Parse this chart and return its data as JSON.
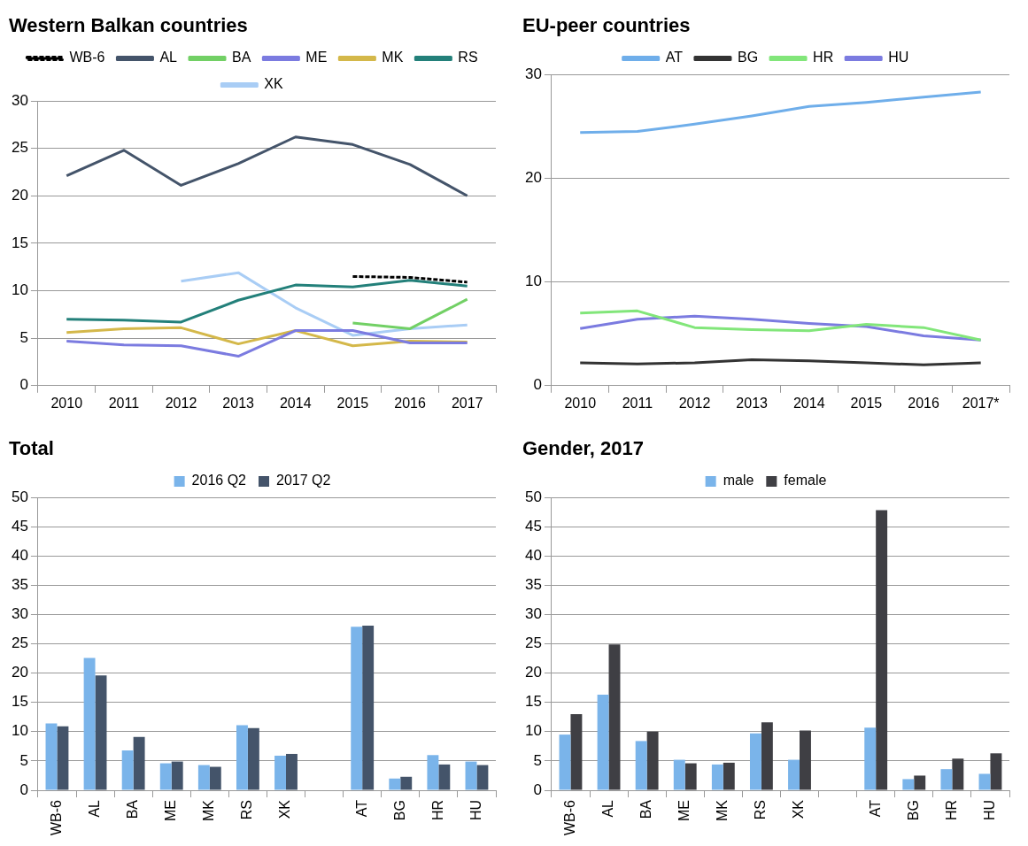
{
  "chart_data": [
    {
      "type": "line",
      "title": "Western Balkan countries",
      "categories": [
        "2010",
        "2011",
        "2012",
        "2013",
        "2014",
        "2015",
        "2016",
        "2017"
      ],
      "series": [
        {
          "name": "WB-6",
          "color": "#000000",
          "line_style": "dashed",
          "values": [
            null,
            null,
            null,
            null,
            null,
            11.5,
            11.4,
            10.9
          ]
        },
        {
          "name": "AL",
          "color": "#44546a",
          "values": [
            22.1,
            24.8,
            21.1,
            23.4,
            26.2,
            25.4,
            23.3,
            20.0
          ]
        },
        {
          "name": "BA",
          "color": "#72d065",
          "values": [
            null,
            null,
            null,
            null,
            null,
            6.6,
            6.0,
            9.1
          ]
        },
        {
          "name": "ME",
          "color": "#7b7be0",
          "values": [
            4.7,
            4.3,
            4.2,
            3.1,
            5.8,
            5.8,
            4.5,
            4.5
          ]
        },
        {
          "name": "MK",
          "color": "#d4b84a",
          "values": [
            5.6,
            6.0,
            6.1,
            4.4,
            5.8,
            4.2,
            4.7,
            4.6
          ]
        },
        {
          "name": "RS",
          "color": "#23807a",
          "values": [
            7.0,
            6.9,
            6.7,
            9.0,
            10.6,
            10.4,
            11.1,
            10.5
          ]
        },
        {
          "name": "XK",
          "color": "#a9cdf5",
          "values": [
            null,
            null,
            11.0,
            11.9,
            8.2,
            5.3,
            6.0,
            6.4
          ]
        }
      ],
      "ylim": [
        0,
        30
      ],
      "yticks": [
        0,
        5,
        10,
        15,
        20,
        25,
        30
      ],
      "grid": "y",
      "legend": "top",
      "marker": "none",
      "line_style": "solid"
    },
    {
      "type": "line",
      "title": "EU-peer countries",
      "categories": [
        "2010",
        "2011",
        "2012",
        "2013",
        "2014",
        "2015",
        "2016",
        "2017*"
      ],
      "series": [
        {
          "name": "AT",
          "color": "#6faeea",
          "values": [
            24.4,
            24.5,
            25.2,
            26.0,
            26.9,
            27.3,
            27.8,
            28.3
          ]
        },
        {
          "name": "BG",
          "color": "#333333",
          "values": [
            2.2,
            2.1,
            2.2,
            2.5,
            2.4,
            2.2,
            2.0,
            2.2
          ]
        },
        {
          "name": "HR",
          "color": "#82e67a",
          "values": [
            7.0,
            7.2,
            5.6,
            5.4,
            5.3,
            5.9,
            5.6,
            4.4
          ]
        },
        {
          "name": "HU",
          "color": "#7b7be0",
          "values": [
            5.5,
            6.4,
            6.7,
            6.4,
            6.0,
            5.7,
            4.8,
            4.4
          ]
        }
      ],
      "ylim": [
        0,
        30
      ],
      "yticks": [
        0,
        10,
        20,
        30
      ],
      "grid": "y",
      "legend": "top",
      "marker": "none",
      "line_style": "solid"
    },
    {
      "type": "bar",
      "title": "Total",
      "categories": [
        "WB-6",
        "AL",
        "BA",
        "ME",
        "MK",
        "RS",
        "XK",
        null,
        "AT",
        "BG",
        "HR",
        "HU"
      ],
      "series": [
        {
          "name": "2016 Q2",
          "color": "#7ab4ea",
          "values": [
            11.4,
            22.6,
            6.8,
            4.6,
            4.3,
            11.1,
            5.9,
            null,
            27.9,
            2.0,
            6.0,
            4.9
          ]
        },
        {
          "name": "2017 Q2",
          "color": "#44546a",
          "values": [
            10.9,
            19.6,
            9.1,
            4.9,
            4.0,
            10.6,
            6.2,
            null,
            28.1,
            2.3,
            4.4,
            4.3
          ]
        }
      ],
      "ylim": [
        0,
        50
      ],
      "yticks": [
        0,
        5,
        10,
        15,
        20,
        25,
        30,
        35,
        40,
        45,
        50
      ],
      "grid": "y",
      "legend": "top"
    },
    {
      "type": "bar",
      "title": "Gender, 2017",
      "categories": [
        "WB-6",
        "AL",
        "BA",
        "ME",
        "MK",
        "RS",
        "XK",
        null,
        "AT",
        "BG",
        "HR",
        "HU"
      ],
      "series": [
        {
          "name": "male",
          "color": "#7ab4ea",
          "values": [
            9.5,
            16.3,
            8.4,
            5.2,
            4.4,
            9.7,
            5.2,
            null,
            10.7,
            1.9,
            3.6,
            2.8
          ]
        },
        {
          "name": "female",
          "color": "#3f3f44",
          "values": [
            13.0,
            24.9,
            10.0,
            4.6,
            4.7,
            11.6,
            10.2,
            null,
            47.8,
            2.5,
            5.4,
            6.3
          ]
        }
      ],
      "ylim": [
        0,
        50
      ],
      "yticks": [
        0,
        5,
        10,
        15,
        20,
        25,
        30,
        35,
        40,
        45,
        50
      ],
      "grid": "y",
      "legend": "top"
    }
  ]
}
